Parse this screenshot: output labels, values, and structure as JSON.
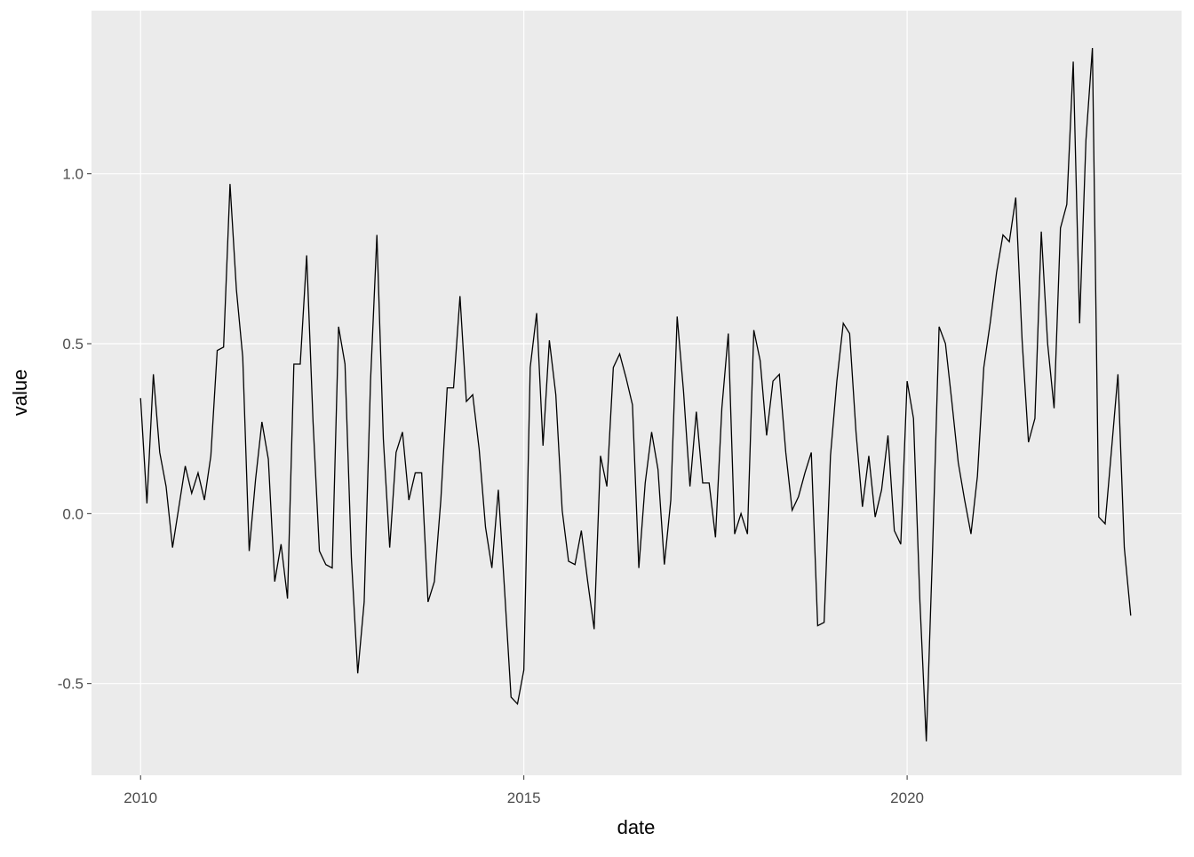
{
  "chart_data": {
    "type": "line",
    "x_label": "date",
    "y_label": "value",
    "x": [
      2010,
      2010.083,
      2010.167,
      2010.25,
      2010.333,
      2010.417,
      2010.5,
      2010.583,
      2010.667,
      2010.75,
      2010.833,
      2010.917,
      2011,
      2011.083,
      2011.167,
      2011.25,
      2011.333,
      2011.417,
      2011.5,
      2011.583,
      2011.667,
      2011.75,
      2011.833,
      2011.917,
      2012,
      2012.083,
      2012.167,
      2012.25,
      2012.333,
      2012.417,
      2012.5,
      2012.583,
      2012.667,
      2012.75,
      2012.833,
      2012.917,
      2013,
      2013.083,
      2013.167,
      2013.25,
      2013.333,
      2013.417,
      2013.5,
      2013.583,
      2013.667,
      2013.75,
      2013.833,
      2013.917,
      2014,
      2014.083,
      2014.167,
      2014.25,
      2014.333,
      2014.417,
      2014.5,
      2014.583,
      2014.667,
      2014.75,
      2014.833,
      2014.917,
      2015,
      2015.083,
      2015.167,
      2015.25,
      2015.333,
      2015.417,
      2015.5,
      2015.583,
      2015.667,
      2015.75,
      2015.833,
      2015.917,
      2016,
      2016.083,
      2016.167,
      2016.25,
      2016.333,
      2016.417,
      2016.5,
      2016.583,
      2016.667,
      2016.75,
      2016.833,
      2016.917,
      2017,
      2017.083,
      2017.167,
      2017.25,
      2017.333,
      2017.417,
      2017.5,
      2017.583,
      2017.667,
      2017.75,
      2017.833,
      2017.917,
      2018,
      2018.083,
      2018.167,
      2018.25,
      2018.333,
      2018.417,
      2018.5,
      2018.583,
      2018.667,
      2018.75,
      2018.833,
      2018.917,
      2019,
      2019.083,
      2019.167,
      2019.25,
      2019.333,
      2019.417,
      2019.5,
      2019.583,
      2019.667,
      2019.75,
      2019.833,
      2019.917,
      2020,
      2020.083,
      2020.167,
      2020.25,
      2020.333,
      2020.417,
      2020.5,
      2020.583,
      2020.667,
      2020.75,
      2020.833,
      2020.917,
      2021,
      2021.083,
      2021.167,
      2021.25,
      2021.333,
      2021.417,
      2021.5,
      2021.583,
      2021.667,
      2021.75,
      2021.833,
      2021.917,
      2022,
      2022.083,
      2022.167,
      2022.25,
      2022.333,
      2022.417,
      2022.5,
      2022.583,
      2022.667,
      2022.75,
      2022.833,
      2022.917
    ],
    "series": [
      {
        "color": "#000000",
        "values": [
          0.34,
          0.03,
          0.41,
          0.18,
          0.08,
          -0.1,
          0.02,
          0.14,
          0.06,
          0.12,
          0.04,
          0.17,
          0.48,
          0.49,
          0.97,
          0.66,
          0.46,
          -0.11,
          0.1,
          0.27,
          0.16,
          -0.2,
          -0.09,
          -0.25,
          0.44,
          0.44,
          0.76,
          0.27,
          -0.11,
          -0.15,
          -0.16,
          0.55,
          0.44,
          -0.13,
          -0.47,
          -0.26,
          0.39,
          0.82,
          0.22,
          -0.1,
          0.18,
          0.24,
          0.04,
          0.12,
          0.12,
          -0.26,
          -0.2,
          0.04,
          0.37,
          0.37,
          0.64,
          0.33,
          0.35,
          0.19,
          -0.04,
          -0.16,
          0.07,
          -0.23,
          -0.54,
          -0.56,
          -0.46,
          0.43,
          0.59,
          0.2,
          0.51,
          0.35,
          0.01,
          -0.14,
          -0.15,
          -0.05,
          -0.2,
          -0.34,
          0.17,
          0.08,
          0.43,
          0.47,
          0.4,
          0.32,
          -0.16,
          0.09,
          0.24,
          0.13,
          -0.15,
          0.04,
          0.58,
          0.36,
          0.08,
          0.3,
          0.09,
          0.09,
          -0.07,
          0.31,
          0.53,
          -0.06,
          0.0,
          -0.06,
          0.54,
          0.45,
          0.23,
          0.39,
          0.41,
          0.18,
          0.01,
          0.05,
          0.12,
          0.18,
          -0.33,
          -0.32,
          0.17,
          0.39,
          0.56,
          0.53,
          0.24,
          0.02,
          0.17,
          -0.01,
          0.07,
          0.23,
          -0.05,
          -0.09,
          0.39,
          0.28,
          -0.26,
          -0.67,
          -0.1,
          0.55,
          0.5,
          0.33,
          0.15,
          0.04,
          -0.06,
          0.11,
          0.43,
          0.56,
          0.71,
          0.82,
          0.8,
          0.93,
          0.51,
          0.21,
          0.28,
          0.83,
          0.5,
          0.31,
          0.84,
          0.91,
          1.33,
          0.56,
          1.1,
          1.37,
          -0.01,
          -0.03,
          0.19,
          0.41,
          -0.1,
          -0.3
        ]
      }
    ],
    "xlim": [
      2009.36,
      2023.58
    ],
    "ylim": [
      -0.77,
      1.48
    ],
    "xticks": [
      2010,
      2015,
      2020
    ],
    "yticks": [
      {
        "value": -0.5,
        "label": "-0.5"
      },
      {
        "value": 0,
        "label": "0.0"
      },
      {
        "value": 0.5,
        "label": "0.5"
      },
      {
        "value": 1,
        "label": "1.0"
      }
    ],
    "grid": true
  }
}
